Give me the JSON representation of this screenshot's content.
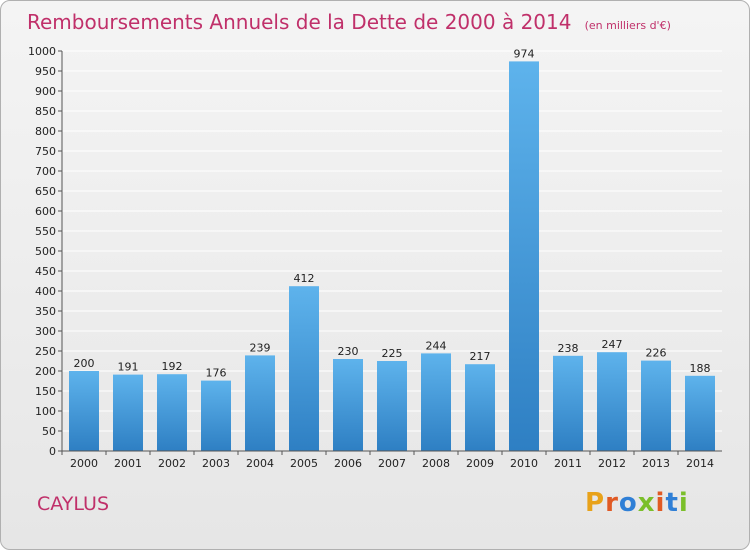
{
  "header": {
    "title": "Remboursements Annuels de la Dette de 2000 à 2014",
    "unit": "(en milliers d'€)"
  },
  "footer": {
    "city": "CAYLUS",
    "brand": "Proxiti",
    "brand_colors": [
      "#e8a21a",
      "#e05a24",
      "#2f7fd6",
      "#7bbf2a",
      "#e05a24",
      "#2f7fd6",
      "#7bbf2a"
    ]
  },
  "colors": {
    "title": "#c0306a",
    "bar_top": "#5eb3ec",
    "bar_bottom": "#2e7fc3",
    "grid": "#ffffff",
    "axis": "#555555",
    "text": "#222222"
  },
  "chart_data": {
    "type": "bar",
    "title": "Remboursements Annuels de la Dette de 2000 à 2014",
    "subtitle": "(en milliers d'€)",
    "categories": [
      "2000",
      "2001",
      "2002",
      "2003",
      "2004",
      "2005",
      "2006",
      "2007",
      "2008",
      "2009",
      "2010",
      "2011",
      "2012",
      "2013",
      "2014"
    ],
    "values": [
      200,
      191,
      192,
      176,
      239,
      412,
      230,
      225,
      244,
      217,
      974,
      238,
      247,
      226,
      188
    ],
    "ylim": [
      0,
      1000
    ],
    "ytick_step": 50,
    "grid": true,
    "xlabel": "",
    "ylabel": ""
  }
}
